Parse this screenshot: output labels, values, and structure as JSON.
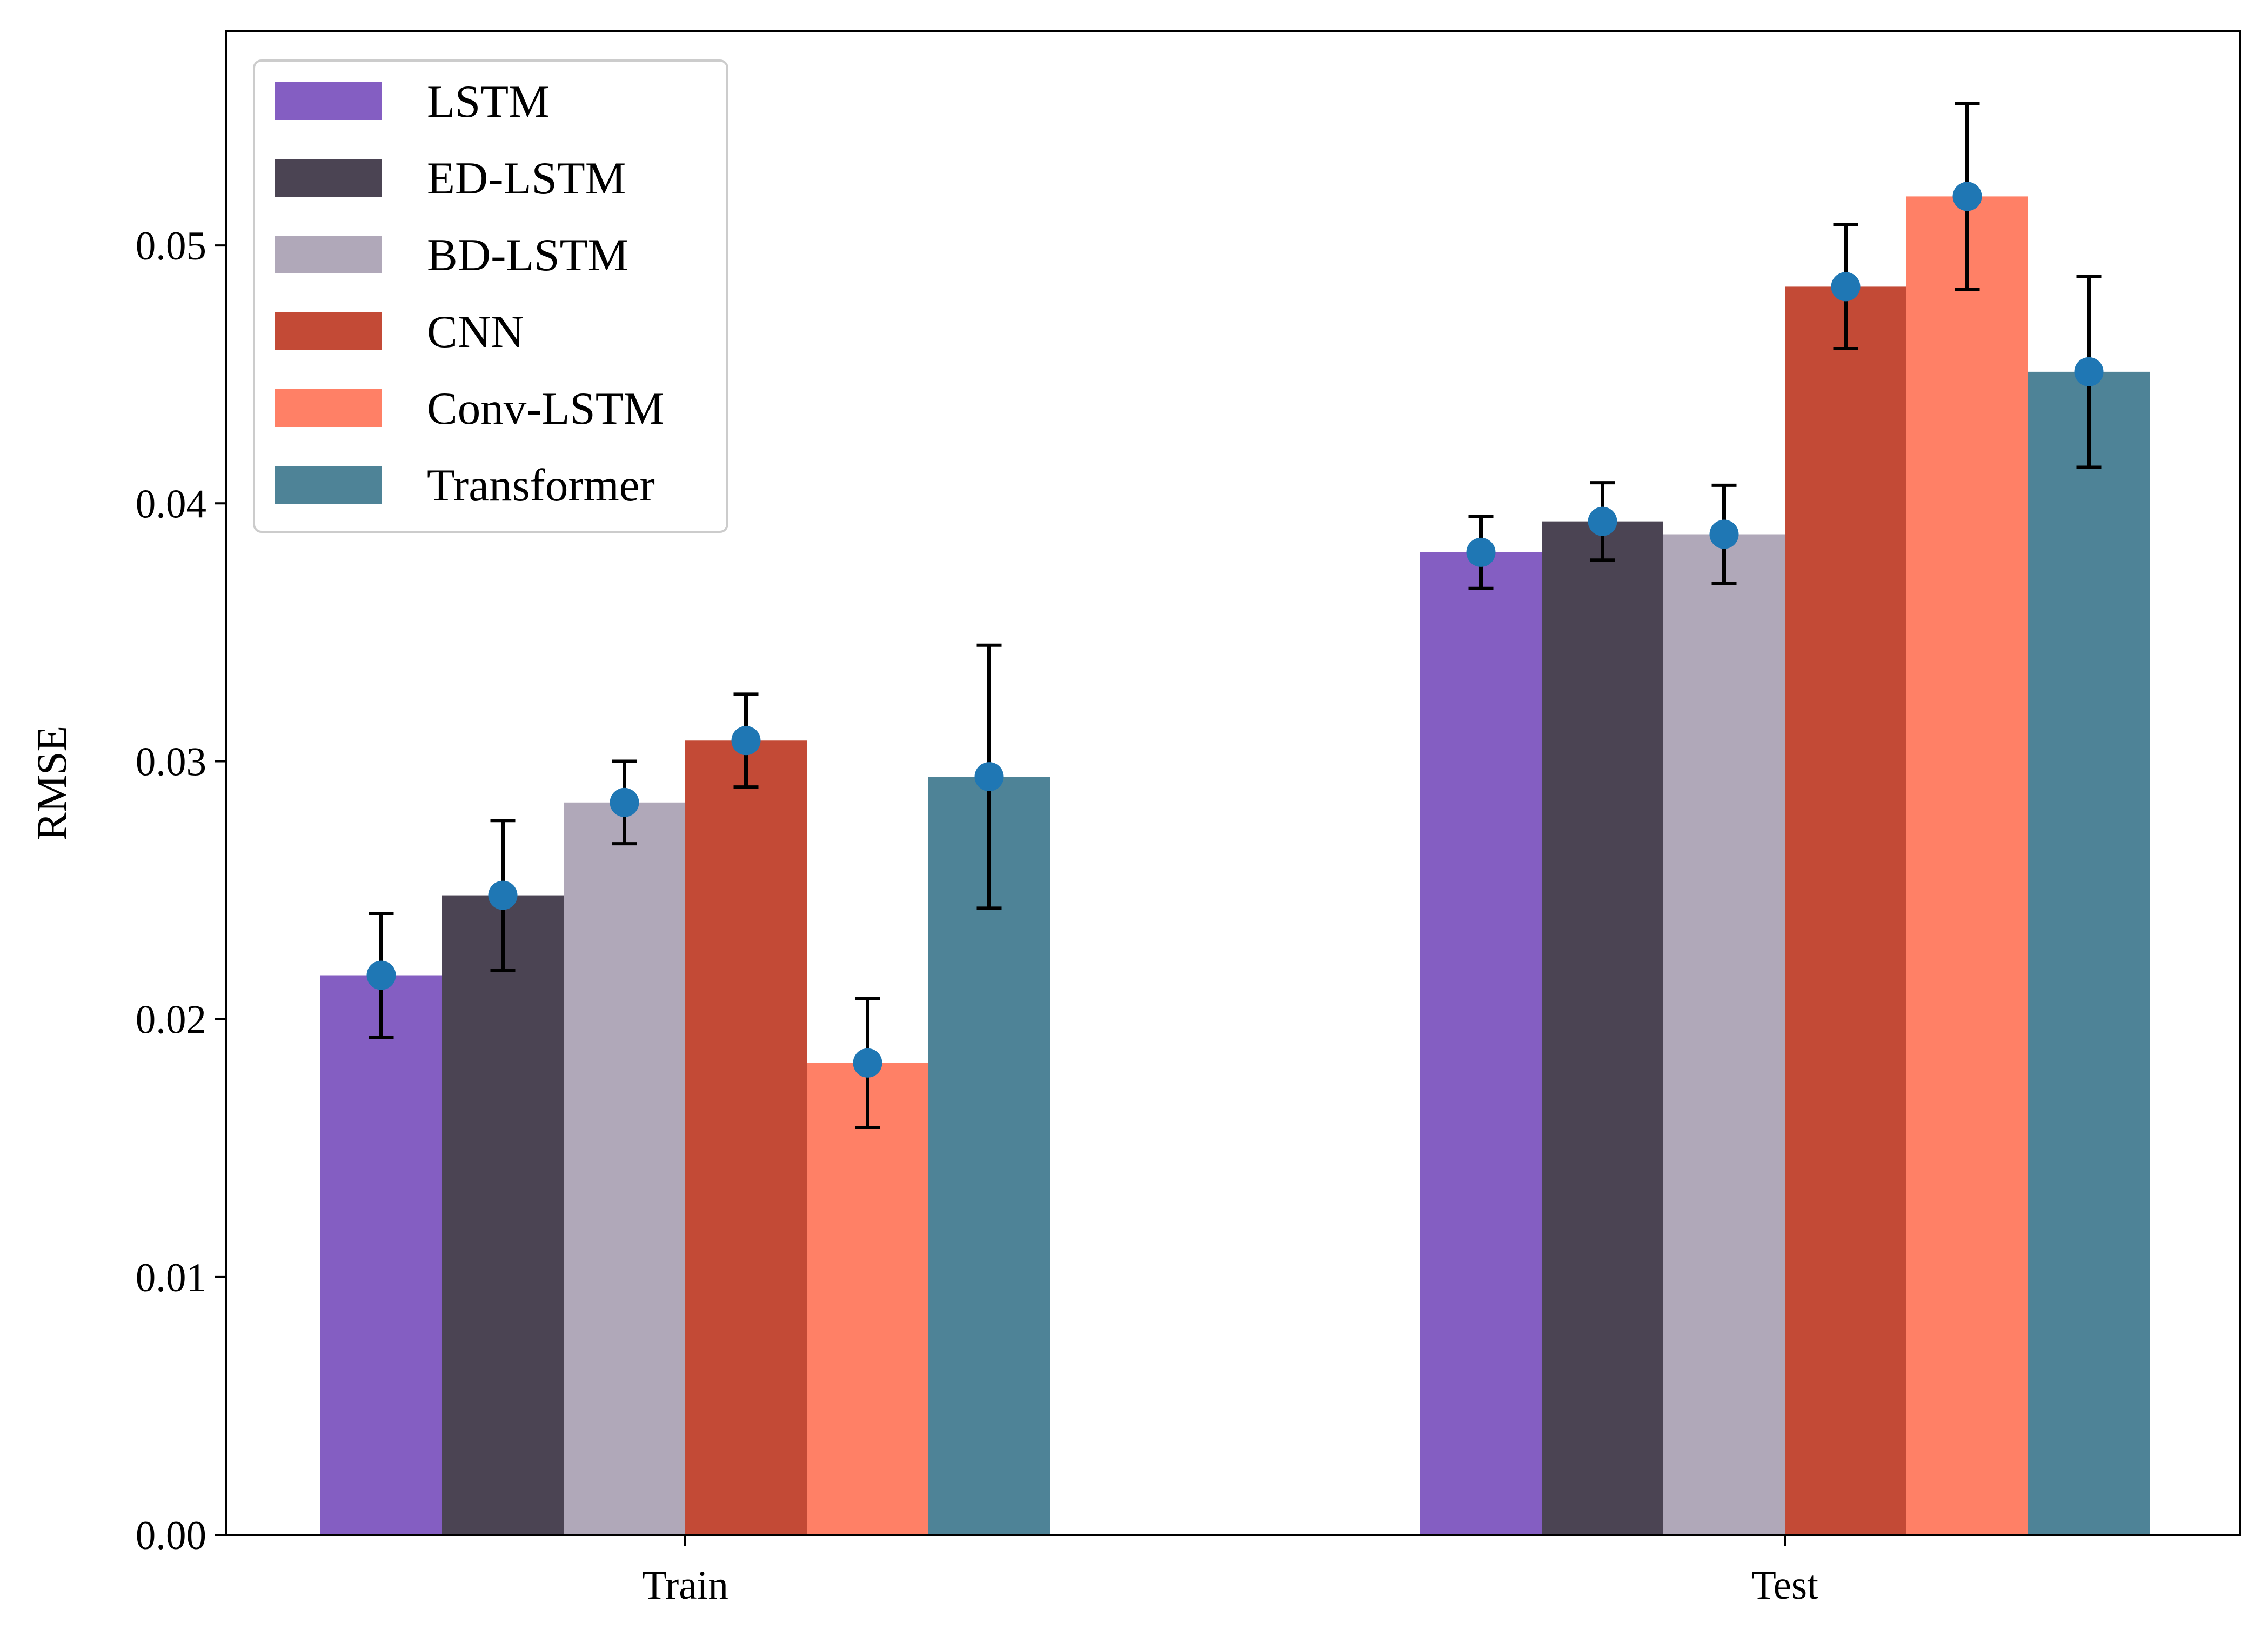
{
  "chart_data": {
    "type": "bar",
    "categories": [
      "Train",
      "Test"
    ],
    "ylabel": "RMSE",
    "xlabel": "",
    "ylim": [
      0,
      0.0583
    ],
    "yticks": [
      "0.00",
      "0.01",
      "0.02",
      "0.03",
      "0.04",
      "0.05"
    ],
    "legend_position": "top-left",
    "grid": false,
    "marker_color": "#1f77b4",
    "series": [
      {
        "name": "LSTM",
        "color": "#845EC2",
        "values": [
          0.0217,
          0.0381
        ],
        "error": [
          0.0024,
          0.0014
        ]
      },
      {
        "name": "ED-LSTM",
        "color": "#4B4453",
        "values": [
          0.0248,
          0.0393
        ],
        "error": [
          0.0029,
          0.0015
        ]
      },
      {
        "name": "BD-LSTM",
        "color": "#B0A8B9",
        "values": [
          0.0284,
          0.0388
        ],
        "error": [
          0.0016,
          0.0019
        ]
      },
      {
        "name": "CNN",
        "color": "#C34A36",
        "values": [
          0.0308,
          0.0484
        ],
        "error": [
          0.0018,
          0.0024
        ]
      },
      {
        "name": "Conv-LSTM",
        "color": "#FF8066",
        "values": [
          0.0183,
          0.0519
        ],
        "error": [
          0.0025,
          0.0036
        ]
      },
      {
        "name": "Transformer",
        "color": "#4E8397",
        "values": [
          0.0294,
          0.0451
        ],
        "error": [
          0.0051,
          0.0037
        ]
      }
    ]
  }
}
